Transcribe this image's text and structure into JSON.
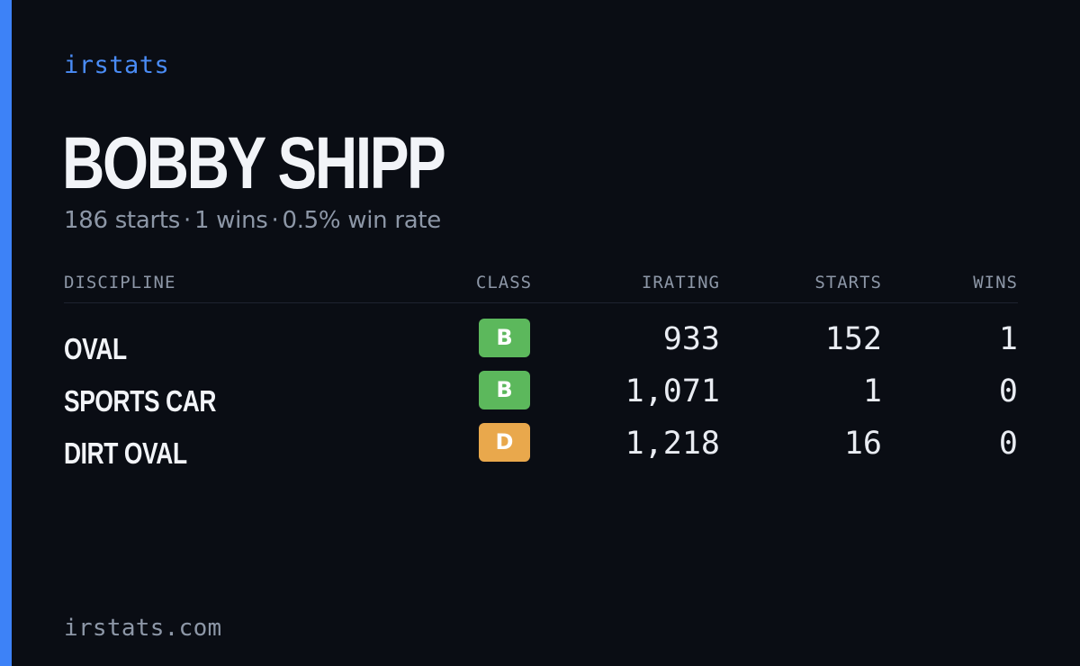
{
  "brand": "irstats",
  "driver": {
    "name": "BOBBY SHIPP",
    "summary": {
      "starts": "186 starts",
      "wins": "1 wins",
      "win_rate": "0.5% win rate",
      "separator": "·"
    }
  },
  "table": {
    "headers": {
      "discipline": "DISCIPLINE",
      "class": "CLASS",
      "irating": "IRATING",
      "starts": "STARTS",
      "wins": "WINS"
    },
    "rows": [
      {
        "discipline": "OVAL",
        "class": "B",
        "class_color": "#5cb85c",
        "irating": "933",
        "starts": "152",
        "wins": "1"
      },
      {
        "discipline": "SPORTS CAR",
        "class": "B",
        "class_color": "#5cb85c",
        "irating": "1,071",
        "starts": "1",
        "wins": "0"
      },
      {
        "discipline": "DIRT OVAL",
        "class": "D",
        "class_color": "#e9a84c",
        "irating": "1,218",
        "starts": "16",
        "wins": "0"
      }
    ]
  },
  "footer": {
    "url": "irstats.com"
  },
  "colors": {
    "background": "#0a0d14",
    "accent": "#3d82f7",
    "text_primary": "#f2f4f8",
    "text_muted": "#8d97a7"
  }
}
